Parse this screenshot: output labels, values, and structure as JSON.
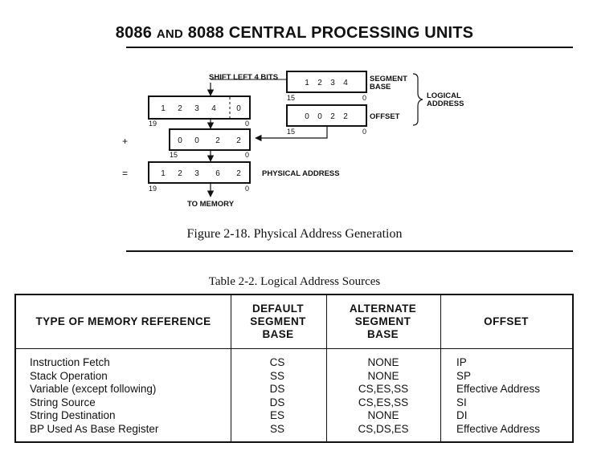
{
  "header": {
    "title_a": "8086",
    "title_b": "AND",
    "title_c": "8088 CENTRAL PROCESSING UNITS"
  },
  "figure": {
    "shift_label": "SHIFT LEFT 4 BITS",
    "segment_label_1": "SEGMENT",
    "segment_label_2": "BASE",
    "segment_digits": [
      "1",
      "2",
      "3",
      "4"
    ],
    "segment_hi_bit": "15",
    "segment_lo_bit": "0",
    "logical_1": "LOGICAL",
    "logical_2": "ADDRESS",
    "offset_label": "OFFSET",
    "offset_digits": [
      "0",
      "0",
      "2",
      "2"
    ],
    "offset_hi_bit": "15",
    "offset_lo_bit": "0",
    "shifted_digits": [
      "1",
      "2",
      "3",
      "4",
      "0"
    ],
    "shifted_hi_bit": "19",
    "shifted_lo_bit": "0",
    "plus_sign": "+",
    "added_digits": [
      "0",
      "0",
      "2",
      "2"
    ],
    "added_hi_bit": "15",
    "added_lo_bit": "0",
    "equals_sign": "=",
    "physical_digits": [
      "1",
      "2",
      "3",
      "6",
      "2"
    ],
    "physical_hi_bit": "19",
    "physical_lo_bit": "0",
    "physical_label": "PHYSICAL ADDRESS",
    "to_memory": "TO MEMORY",
    "caption": "Figure 2-18. Physical Address Generation"
  },
  "table": {
    "title": "Table 2-2. Logical Address Sources",
    "headers": {
      "type": [
        "TYPE OF MEMORY REFERENCE"
      ],
      "default": [
        "DEFAULT",
        "SEGMENT",
        "BASE"
      ],
      "alternate": [
        "ALTERNATE",
        "SEGMENT",
        "BASE"
      ],
      "offset": [
        "OFFSET"
      ]
    },
    "rows": [
      {
        "type": "Instruction Fetch",
        "default": "CS",
        "alternate": "NONE",
        "offset": "IP"
      },
      {
        "type": "Stack Operation",
        "default": "SS",
        "alternate": "NONE",
        "offset": "SP"
      },
      {
        "type": "Variable (except following)",
        "default": "DS",
        "alternate": "CS,ES,SS",
        "offset": "Effective Address"
      },
      {
        "type": "String Source",
        "default": "DS",
        "alternate": "CS,ES,SS",
        "offset": "SI"
      },
      {
        "type": "String Destination",
        "default": "ES",
        "alternate": "NONE",
        "offset": "DI"
      },
      {
        "type": "BP Used As Base Register",
        "default": "SS",
        "alternate": "CS,DS,ES",
        "offset": "Effective Address"
      }
    ]
  }
}
